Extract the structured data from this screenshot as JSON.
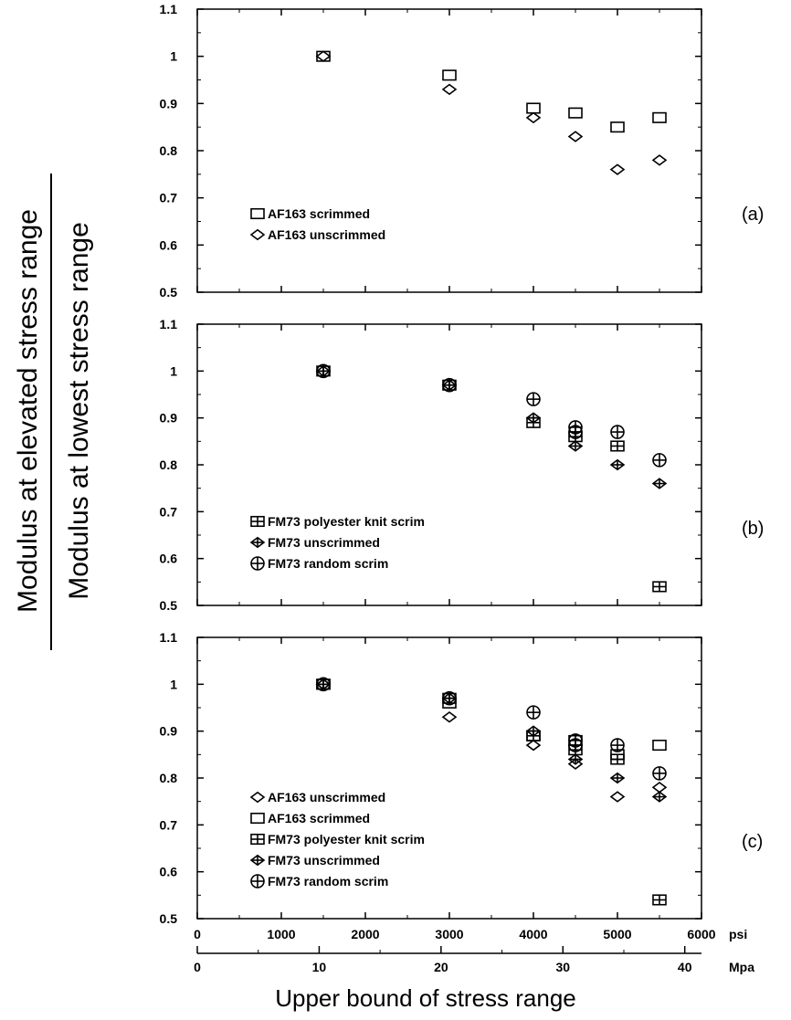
{
  "chart_data": {
    "type": "scatter",
    "ylabel_numerator": "Modulus at elevated stress range",
    "ylabel_denominator": "Modulus at lowest stress range",
    "xlabel": "Upper bound of stress range",
    "x_axis_psi": {
      "unit": "psi",
      "xlim": [
        0,
        6000
      ],
      "ticks": [
        0,
        1000,
        2000,
        3000,
        4000,
        5000,
        6000
      ]
    },
    "x_axis_mpa": {
      "unit": "Mpa",
      "xlim": [
        0,
        41.37
      ],
      "ticks": [
        0,
        10,
        20,
        30,
        40
      ]
    },
    "panels": [
      {
        "label": "(a)",
        "ylim": [
          0.5,
          1.1
        ],
        "yticks": [
          0.5,
          0.6,
          0.7,
          0.8,
          0.9,
          1,
          1.1
        ],
        "series": [
          {
            "name": "AF163 scrimmed",
            "marker": "square",
            "points": [
              [
                1500,
                1.0
              ],
              [
                3000,
                0.96
              ],
              [
                4000,
                0.89
              ],
              [
                4500,
                0.88
              ],
              [
                5000,
                0.85
              ],
              [
                5500,
                0.87
              ]
            ]
          },
          {
            "name": "AF163 unscrimmed",
            "marker": "diamond",
            "points": [
              [
                1500,
                1.0
              ],
              [
                3000,
                0.93
              ],
              [
                4000,
                0.87
              ],
              [
                4500,
                0.83
              ],
              [
                5000,
                0.76
              ],
              [
                5500,
                0.78
              ]
            ]
          }
        ]
      },
      {
        "label": "(b)",
        "ylim": [
          0.5,
          1.1
        ],
        "yticks": [
          0.5,
          0.6,
          0.7,
          0.8,
          0.9,
          1,
          1.1
        ],
        "series": [
          {
            "name": "FM73 polyester knit scrim",
            "marker": "square-cross",
            "points": [
              [
                1500,
                1.0
              ],
              [
                3000,
                0.97
              ],
              [
                4000,
                0.89
              ],
              [
                4500,
                0.86
              ],
              [
                5000,
                0.84
              ],
              [
                5500,
                0.54
              ]
            ]
          },
          {
            "name": "FM73 unscrimmed",
            "marker": "diamond-cross",
            "points": [
              [
                1500,
                1.0
              ],
              [
                3000,
                0.97
              ],
              [
                4000,
                0.9
              ],
              [
                4500,
                0.84
              ],
              [
                5000,
                0.8
              ],
              [
                5500,
                0.76
              ]
            ]
          },
          {
            "name": "FM73 random scrim",
            "marker": "circle-cross",
            "points": [
              [
                1500,
                1.0
              ],
              [
                3000,
                0.97
              ],
              [
                4000,
                0.94
              ],
              [
                4500,
                0.88
              ],
              [
                4500,
                0.87
              ],
              [
                5000,
                0.87
              ],
              [
                5500,
                0.81
              ]
            ]
          }
        ]
      },
      {
        "label": "(c)",
        "ylim": [
          0.5,
          1.1
        ],
        "yticks": [
          0.5,
          0.6,
          0.7,
          0.8,
          0.9,
          1,
          1.1
        ],
        "series": [
          {
            "name": "AF163 unscrimmed",
            "marker": "diamond",
            "points": [
              [
                1500,
                1.0
              ],
              [
                3000,
                0.93
              ],
              [
                4000,
                0.87
              ],
              [
                4500,
                0.83
              ],
              [
                5000,
                0.76
              ],
              [
                5500,
                0.78
              ]
            ]
          },
          {
            "name": "AF163 scrimmed",
            "marker": "square",
            "points": [
              [
                1500,
                1.0
              ],
              [
                3000,
                0.96
              ],
              [
                4000,
                0.89
              ],
              [
                4500,
                0.88
              ],
              [
                5000,
                0.85
              ],
              [
                5500,
                0.87
              ]
            ]
          },
          {
            "name": "FM73 polyester knit scrim",
            "marker": "square-cross",
            "points": [
              [
                1500,
                1.0
              ],
              [
                3000,
                0.97
              ],
              [
                4000,
                0.89
              ],
              [
                4500,
                0.86
              ],
              [
                5000,
                0.84
              ],
              [
                5500,
                0.54
              ]
            ]
          },
          {
            "name": "FM73 unscrimmed",
            "marker": "diamond-cross",
            "points": [
              [
                1500,
                1.0
              ],
              [
                3000,
                0.97
              ],
              [
                4000,
                0.9
              ],
              [
                4500,
                0.84
              ],
              [
                5000,
                0.8
              ],
              [
                5500,
                0.76
              ]
            ]
          },
          {
            "name": "FM73 random scrim",
            "marker": "circle-cross",
            "points": [
              [
                1500,
                1.0
              ],
              [
                3000,
                0.97
              ],
              [
                4000,
                0.94
              ],
              [
                4500,
                0.88
              ],
              [
                4500,
                0.87
              ],
              [
                5000,
                0.87
              ],
              [
                5500,
                0.81
              ]
            ]
          }
        ]
      }
    ]
  }
}
